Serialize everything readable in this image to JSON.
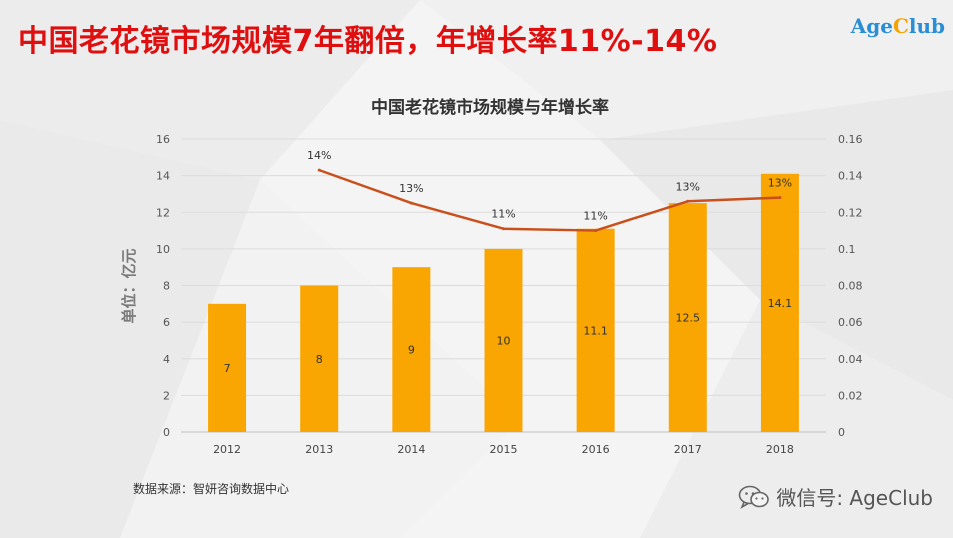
{
  "header": {
    "title": "中国老花镜市场规模7年翻倍，年增长率11%-14%"
  },
  "logo": {
    "part1": "Age",
    "part2": "C",
    "part3": "lub"
  },
  "source": "数据来源：智妍咨询数据中心",
  "wechat": {
    "label": "微信号: AgeClub",
    "icon": "wechat-icon"
  },
  "colors": {
    "bar": "#f9a602",
    "line": "#c9501c",
    "title": "#e00f0f",
    "logo": "#2a8ed6"
  },
  "chart_data": {
    "type": "bar",
    "title": "中国老花镜市场规模与年增长率",
    "ylabel": "单位：亿元",
    "categories": [
      "2012",
      "2013",
      "2014",
      "2015",
      "2016",
      "2017",
      "2018"
    ],
    "bar_values": [
      7,
      8,
      9,
      10,
      11.1,
      12.5,
      14.1
    ],
    "bar_labels": [
      "7",
      "8",
      "9",
      "10",
      "11.1",
      "12.5",
      "14.1"
    ],
    "line_x": [
      "2013",
      "2014",
      "2015",
      "2016",
      "2017",
      "2018"
    ],
    "line_values": [
      0.143,
      0.125,
      0.111,
      0.11,
      0.126,
      0.128
    ],
    "line_labels": [
      "14%",
      "13%",
      "11%",
      "11%",
      "13%",
      "13%"
    ],
    "y_left": {
      "min": 0,
      "max": 16,
      "ticks": [
        "0",
        "2",
        "4",
        "6",
        "8",
        "10",
        "12",
        "14",
        "16"
      ]
    },
    "y_right": {
      "min": 0,
      "max": 0.16,
      "ticks": [
        "0",
        "0.02",
        "0.04",
        "0.06",
        "0.08",
        "0.1",
        "0.12",
        "0.14",
        "0.16"
      ]
    },
    "grid": true,
    "legend": "none"
  }
}
